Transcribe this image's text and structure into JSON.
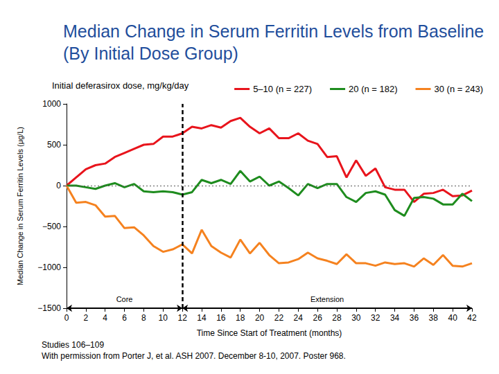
{
  "chart_data": {
    "type": "line",
    "title": "Median Change in Serum Ferritin Levels from Baseline (By Initial Dose Group)",
    "legend_title": "Initial deferasirox dose, mg/kg/day",
    "x_label": "Time Since Start of Treatment (months)",
    "y_label": "Median Change in Serum Ferritin Levels (μg/L)",
    "x": [
      0,
      1,
      2,
      3,
      4,
      5,
      6,
      7,
      8,
      9,
      10,
      11,
      12,
      13,
      14,
      15,
      16,
      17,
      18,
      19,
      20,
      21,
      22,
      23,
      24,
      25,
      26,
      27,
      28,
      29,
      30,
      31,
      32,
      33,
      34,
      35,
      36,
      37,
      38,
      39,
      40,
      41,
      42
    ],
    "series": [
      {
        "name": "5–10 (n = 227)",
        "color": "#e8141c",
        "values": [
          0,
          100,
          200,
          250,
          270,
          350,
          400,
          450,
          500,
          510,
          600,
          600,
          640,
          720,
          700,
          740,
          710,
          790,
          830,
          720,
          640,
          700,
          580,
          580,
          640,
          550,
          510,
          350,
          360,
          100,
          310,
          120,
          210,
          -20,
          -50,
          -50,
          -200,
          -100,
          -90,
          -50,
          -130,
          -120,
          -60
        ]
      },
      {
        "name": "20 (n = 182)",
        "color": "#1e8c1e",
        "values": [
          0,
          0,
          -20,
          -40,
          0,
          30,
          -20,
          20,
          -70,
          -80,
          -70,
          -80,
          -110,
          -80,
          70,
          30,
          70,
          20,
          180,
          50,
          110,
          0,
          50,
          -30,
          -120,
          20,
          -30,
          20,
          20,
          -140,
          -200,
          -90,
          -70,
          -110,
          -300,
          -370,
          -150,
          -140,
          -160,
          -230,
          -230,
          -100,
          -190
        ]
      },
      {
        "name": "30 (n = 243)",
        "color": "#f5821f",
        "values": [
          0,
          -210,
          -200,
          -240,
          -380,
          -370,
          -520,
          -510,
          -610,
          -740,
          -810,
          -780,
          -720,
          -830,
          -540,
          -740,
          -820,
          -880,
          -660,
          -830,
          -700,
          -850,
          -950,
          -940,
          -900,
          -820,
          -890,
          -920,
          -960,
          -840,
          -950,
          -950,
          -980,
          -940,
          -960,
          -950,
          -990,
          -890,
          -970,
          -850,
          -980,
          -990,
          -950
        ]
      }
    ],
    "xlim": [
      0,
      42
    ],
    "xticks": [
      0,
      2,
      4,
      6,
      8,
      10,
      12,
      14,
      16,
      18,
      20,
      22,
      24,
      26,
      28,
      30,
      32,
      34,
      36,
      38,
      40,
      42
    ],
    "ylim": [
      -1500,
      1000
    ],
    "yticks": [
      {
        "value": -1500,
        "label": "−1500"
      },
      {
        "value": -1000,
        "label": "−1000"
      },
      {
        "value": -500,
        "label": "−500"
      },
      0,
      500,
      1000
    ],
    "reference_lines": [
      {
        "axis": "x",
        "value": 12
      },
      {
        "axis": "y",
        "value": 0
      }
    ],
    "phases": [
      {
        "label": "Core",
        "from": 0,
        "to": 12
      },
      {
        "label": "Extension",
        "from": 12,
        "to": 42
      }
    ],
    "notes": [
      "Studies 106–109",
      "With permission from Porter J, et al. ASH 2007. December 8-10, 2007. Poster 968."
    ],
    "legend": "top",
    "grid": false
  }
}
